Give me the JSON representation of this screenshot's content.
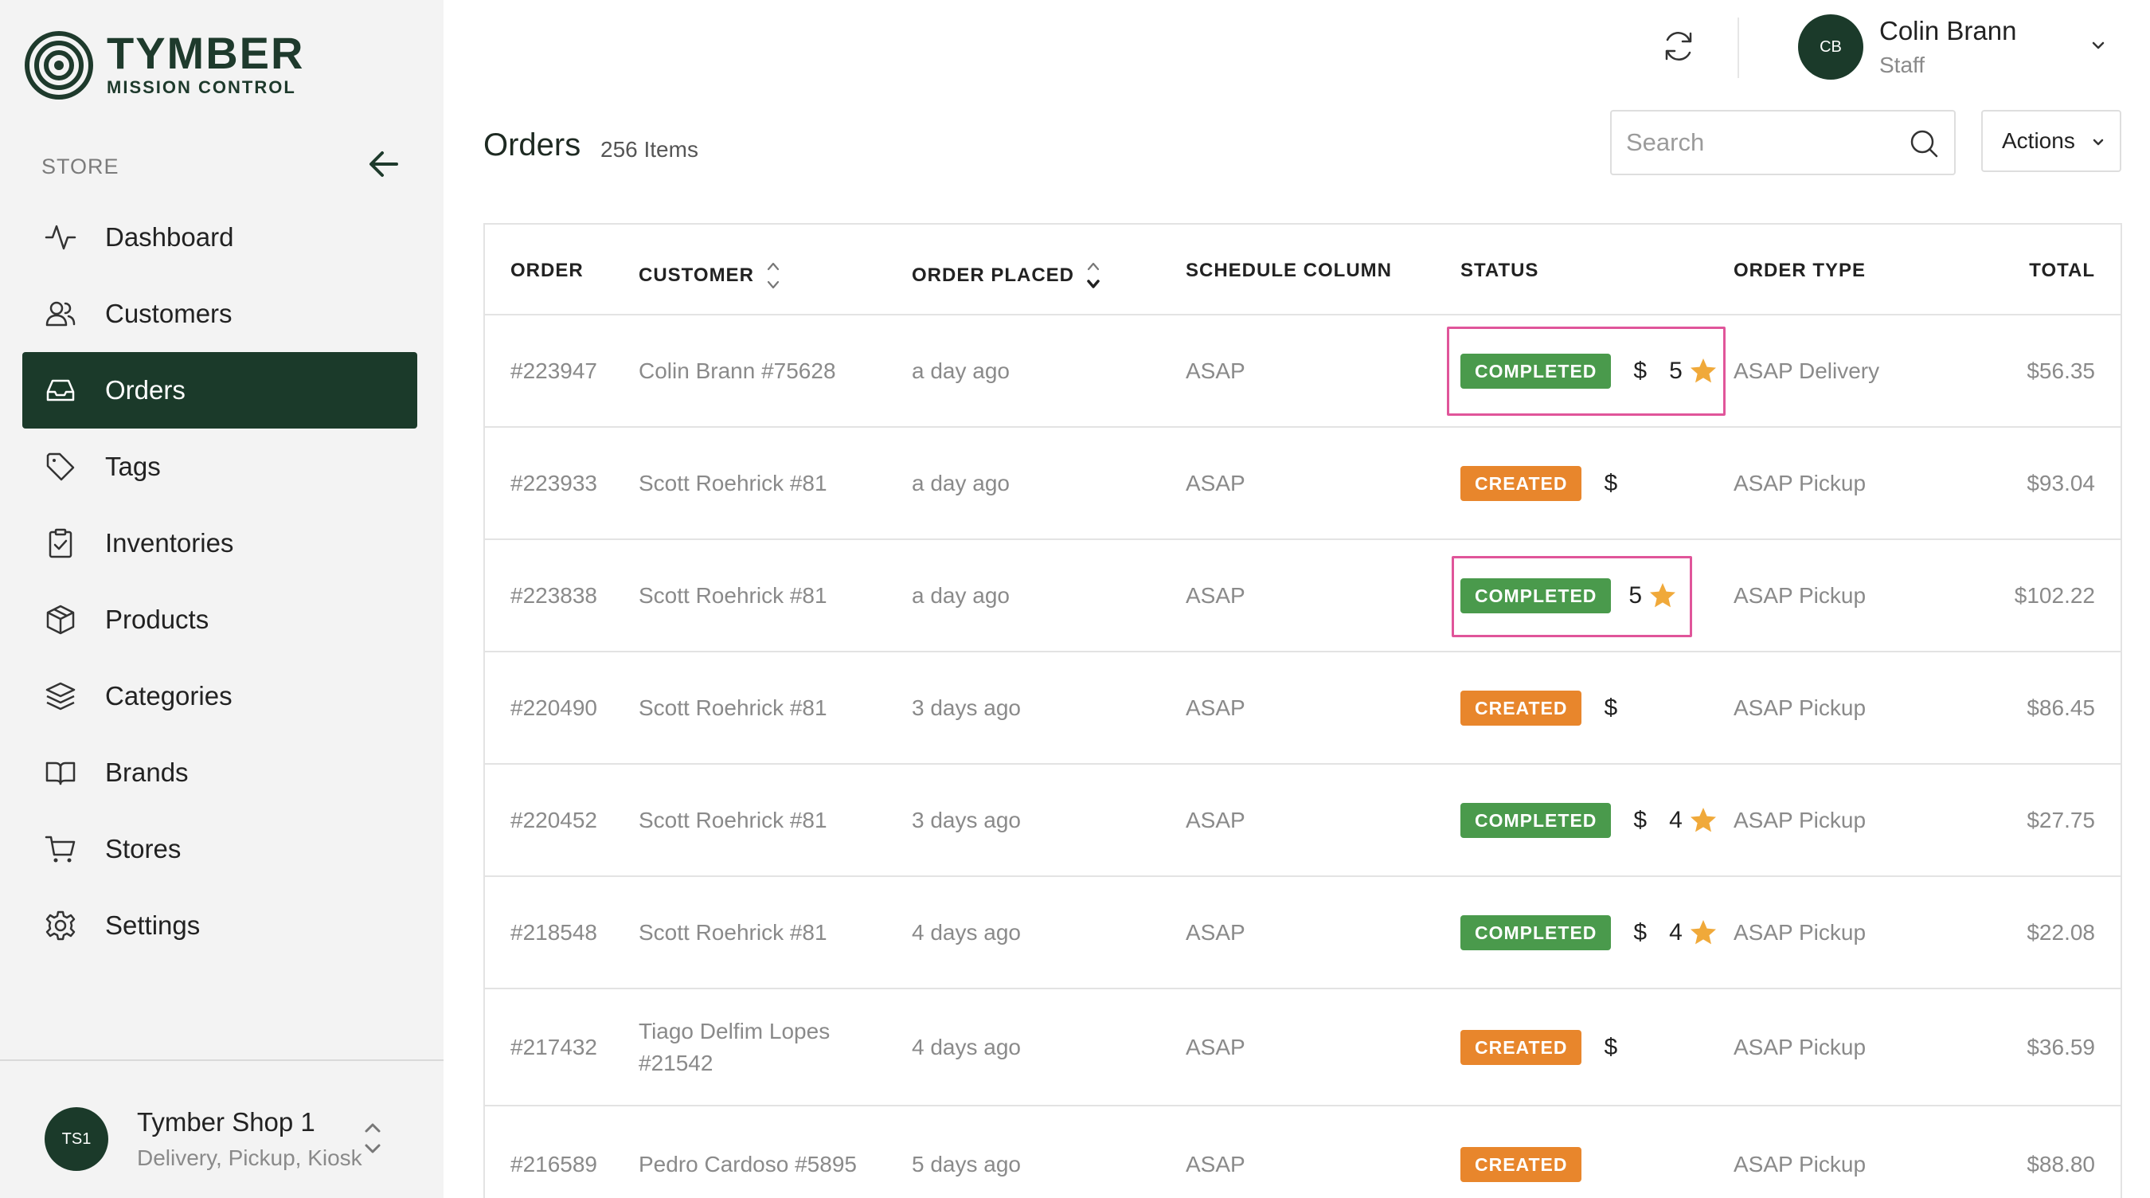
{
  "brand": {
    "name": "TYMBER",
    "subtitle": "MISSION CONTROL"
  },
  "sidebar": {
    "section_label": "STORE",
    "items": [
      {
        "key": "dashboard",
        "label": "Dashboard",
        "icon": "activity-icon",
        "active": false
      },
      {
        "key": "customers",
        "label": "Customers",
        "icon": "users-icon",
        "active": false
      },
      {
        "key": "orders",
        "label": "Orders",
        "icon": "inbox-icon",
        "active": true
      },
      {
        "key": "tags",
        "label": "Tags",
        "icon": "tag-icon",
        "active": false
      },
      {
        "key": "inventories",
        "label": "Inventories",
        "icon": "clipboard-icon",
        "active": false
      },
      {
        "key": "products",
        "label": "Products",
        "icon": "box-icon",
        "active": false
      },
      {
        "key": "categories",
        "label": "Categories",
        "icon": "layers-icon",
        "active": false
      },
      {
        "key": "brands",
        "label": "Brands",
        "icon": "book-icon",
        "active": false
      },
      {
        "key": "stores",
        "label": "Stores",
        "icon": "cart-icon",
        "active": false
      },
      {
        "key": "settings",
        "label": "Settings",
        "icon": "gear-icon",
        "active": false
      }
    ],
    "shop": {
      "initials": "TS1",
      "name": "Tymber Shop 1",
      "modes": "Delivery, Pickup, Kiosk"
    }
  },
  "user": {
    "initials": "CB",
    "name": "Colin Brann",
    "role": "Staff"
  },
  "page": {
    "title": "Orders",
    "count": "256 Items"
  },
  "search": {
    "placeholder": "Search",
    "value": ""
  },
  "actions": {
    "label": "Actions"
  },
  "table": {
    "headers": {
      "order": "ORDER",
      "customer": "CUSTOMER",
      "placed": "ORDER PLACED",
      "schedule": "SCHEDULE COLUMN",
      "status": "STATUS",
      "type": "ORDER TYPE",
      "total": "TOTAL"
    },
    "rows": [
      {
        "order": "#223947",
        "customer": "Colin Brann #75628",
        "placed": "a day ago",
        "schedule": "ASAP",
        "status": "COMPLETED",
        "money": "$",
        "rating": "5",
        "type": "ASAP Delivery",
        "total": "$56.35"
      },
      {
        "order": "#223933",
        "customer": "Scott Roehrick #81",
        "placed": "a day ago",
        "schedule": "ASAP",
        "status": "CREATED",
        "money": "$",
        "rating": "",
        "type": "ASAP Pickup",
        "total": "$93.04"
      },
      {
        "order": "#223838",
        "customer": "Scott Roehrick #81",
        "placed": "a day ago",
        "schedule": "ASAP",
        "status": "COMPLETED",
        "money": "",
        "rating": "5",
        "type": "ASAP Pickup",
        "total": "$102.22"
      },
      {
        "order": "#220490",
        "customer": "Scott Roehrick #81",
        "placed": "3 days ago",
        "schedule": "ASAP",
        "status": "CREATED",
        "money": "$",
        "rating": "",
        "type": "ASAP Pickup",
        "total": "$86.45"
      },
      {
        "order": "#220452",
        "customer": "Scott Roehrick #81",
        "placed": "3 days ago",
        "schedule": "ASAP",
        "status": "COMPLETED",
        "money": "$",
        "rating": "4",
        "type": "ASAP Pickup",
        "total": "$27.75"
      },
      {
        "order": "#218548",
        "customer": "Scott Roehrick #81",
        "placed": "4 days ago",
        "schedule": "ASAP",
        "status": "COMPLETED",
        "money": "$",
        "rating": "4",
        "type": "ASAP Pickup",
        "total": "$22.08"
      },
      {
        "order": "#217432",
        "customer": "Tiago Delfim Lopes #21542",
        "placed": "4 days ago",
        "schedule": "ASAP",
        "status": "CREATED",
        "money": "$",
        "rating": "",
        "type": "ASAP Pickup",
        "total": "$36.59"
      },
      {
        "order": "#216589",
        "customer": "Pedro Cardoso #5895",
        "placed": "5 days ago",
        "schedule": "ASAP",
        "status": "CREATED",
        "money": "",
        "rating": "",
        "type": "ASAP Pickup",
        "total": "$88.80"
      }
    ]
  },
  "colors": {
    "brand_dark": "#1b3a2a",
    "completed": "#4a9a4c",
    "created": "#e8862c",
    "star": "#f0a93a",
    "highlight": "#e0559a"
  }
}
